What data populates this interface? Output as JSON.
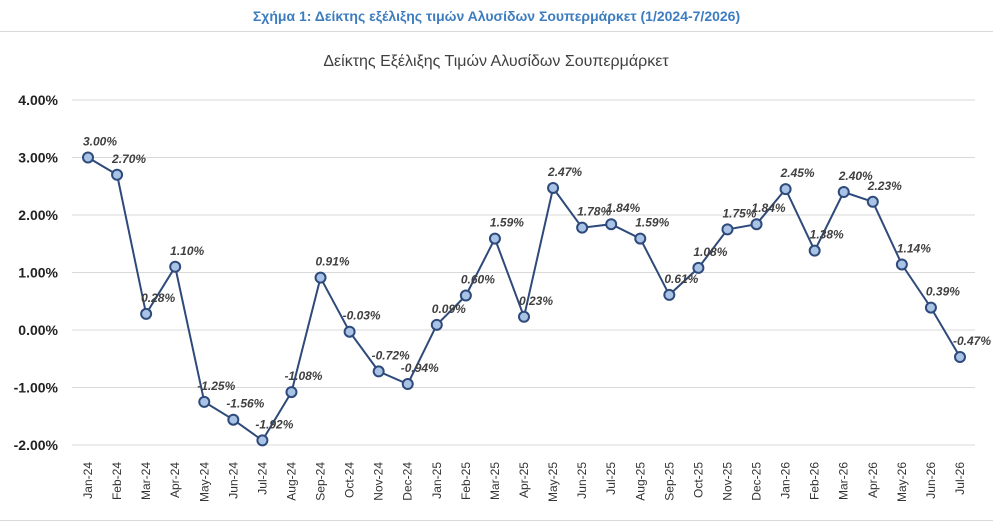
{
  "caption": "Σχήμα 1: Δείκτης εξέλιξης τιμών Αλυσίδων Σουπερμάρκετ (1/2024-7/2026)",
  "colors": {
    "caption": "#3d7dbf",
    "line": "#2e4a7a",
    "marker_fill": "#a9c3e6",
    "grid": "#d9d9d9"
  },
  "chart_data": {
    "type": "line",
    "title": "Δείκτης Εξέλιξης Τιμών Αλυσίδων Σουπερμάρκετ",
    "xlabel": "",
    "ylabel": "",
    "ylim": [
      -0.02,
      0.04
    ],
    "yticks": [
      0.04,
      0.03,
      0.02,
      0.01,
      0.0,
      -0.01,
      -0.02
    ],
    "ytick_labels": [
      "4.00%",
      "3.00%",
      "2.00%",
      "1.00%",
      "0.00%",
      "-1.00%",
      "-2.00%"
    ],
    "grid": true,
    "legend": "none",
    "categories": [
      "Jan-24",
      "Feb-24",
      "Mar-24",
      "Apr-24",
      "May-24",
      "Jun-24",
      "Jul-24",
      "Aug-24",
      "Sep-24",
      "Oct-24",
      "Nov-24",
      "Dec-24",
      "Jan-25",
      "Feb-25",
      "Mar-25",
      "Apr-25",
      "May-25",
      "Jun-25",
      "Jul-25",
      "Aug-25",
      "Sep-25",
      "Oct-25",
      "Nov-25",
      "Dec-25",
      "Jan-26",
      "Feb-26",
      "Mar-26",
      "Apr-26",
      "May-26",
      "Jun-26",
      "Jul-26"
    ],
    "values": [
      0.03,
      0.027,
      0.0028,
      0.011,
      -0.0125,
      -0.0156,
      -0.0192,
      -0.0108,
      0.0091,
      -0.0003,
      -0.0072,
      -0.0094,
      0.0009,
      0.006,
      0.0159,
      0.0023,
      0.0247,
      0.0178,
      0.0184,
      0.0159,
      0.0061,
      0.0108,
      0.0175,
      0.0184,
      0.0245,
      0.0138,
      0.024,
      0.0223,
      0.0114,
      0.0039,
      -0.0047
    ],
    "data_labels": [
      "3.00%",
      "2.70%",
      "0.28%",
      "1.10%",
      "-1.25%",
      "-1.56%",
      "-1.92%",
      "-1.08%",
      "0.91%",
      "-0.03%",
      "-0.72%",
      "-0.94%",
      "0.09%",
      "0.60%",
      "1.59%",
      "0.23%",
      "2.47%",
      "1.78%",
      "1.84%",
      "1.59%",
      "0.61%",
      "1.08%",
      "1.75%",
      "1.84%",
      "2.45%",
      "1.38%",
      "2.40%",
      "2.23%",
      "1.14%",
      "0.39%",
      "-0.47%"
    ]
  }
}
